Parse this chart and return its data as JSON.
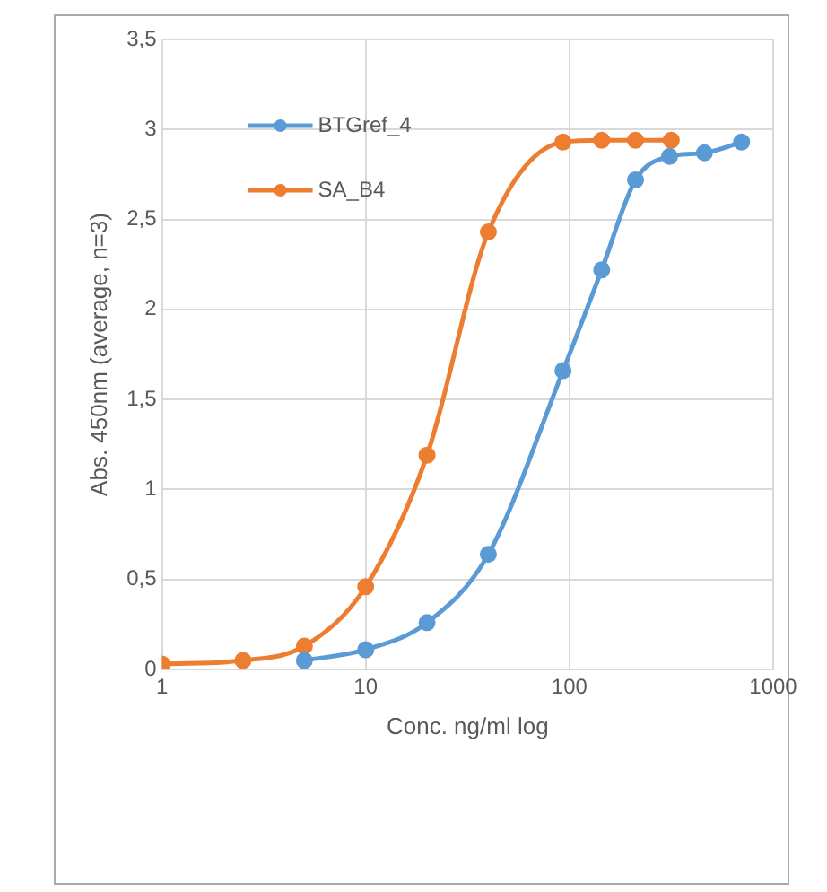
{
  "chart_data": {
    "type": "line",
    "xlabel": "Conc. ng/ml log",
    "ylabel": "Abs. 450nm (average, n=3)",
    "log": "x",
    "xlim": [
      1,
      1000
    ],
    "xticks": [
      1,
      10,
      100,
      1000
    ],
    "ylim": [
      0,
      3.5
    ],
    "yticks": [
      0,
      {
        "value": 0.5,
        "label": "0,5"
      },
      1,
      {
        "value": 1.5,
        "label": "1,5"
      },
      2,
      {
        "value": 2.5,
        "label": "2,5"
      },
      3,
      {
        "value": 3.5,
        "label": "3,5"
      }
    ],
    "grid": true,
    "legend": "top left",
    "marker": "circle",
    "line_style": "solid",
    "series": [
      {
        "name": "BTGref_4",
        "color": "#5b9bd5",
        "x": [
          5,
          10,
          20,
          40,
          93,
          144,
          211,
          310,
          460,
          700
        ],
        "values": [
          0.05,
          0.11,
          0.26,
          0.64,
          1.66,
          2.22,
          2.72,
          2.85,
          2.87,
          2.93
        ]
      },
      {
        "name": "SA_B4",
        "color": "#ed7d31",
        "x": [
          1,
          2.5,
          5,
          10,
          20,
          40,
          93,
          144,
          211,
          316
        ],
        "values": [
          0.03,
          0.05,
          0.13,
          0.46,
          1.19,
          2.43,
          2.93,
          2.94,
          2.94,
          2.94
        ]
      }
    ]
  }
}
